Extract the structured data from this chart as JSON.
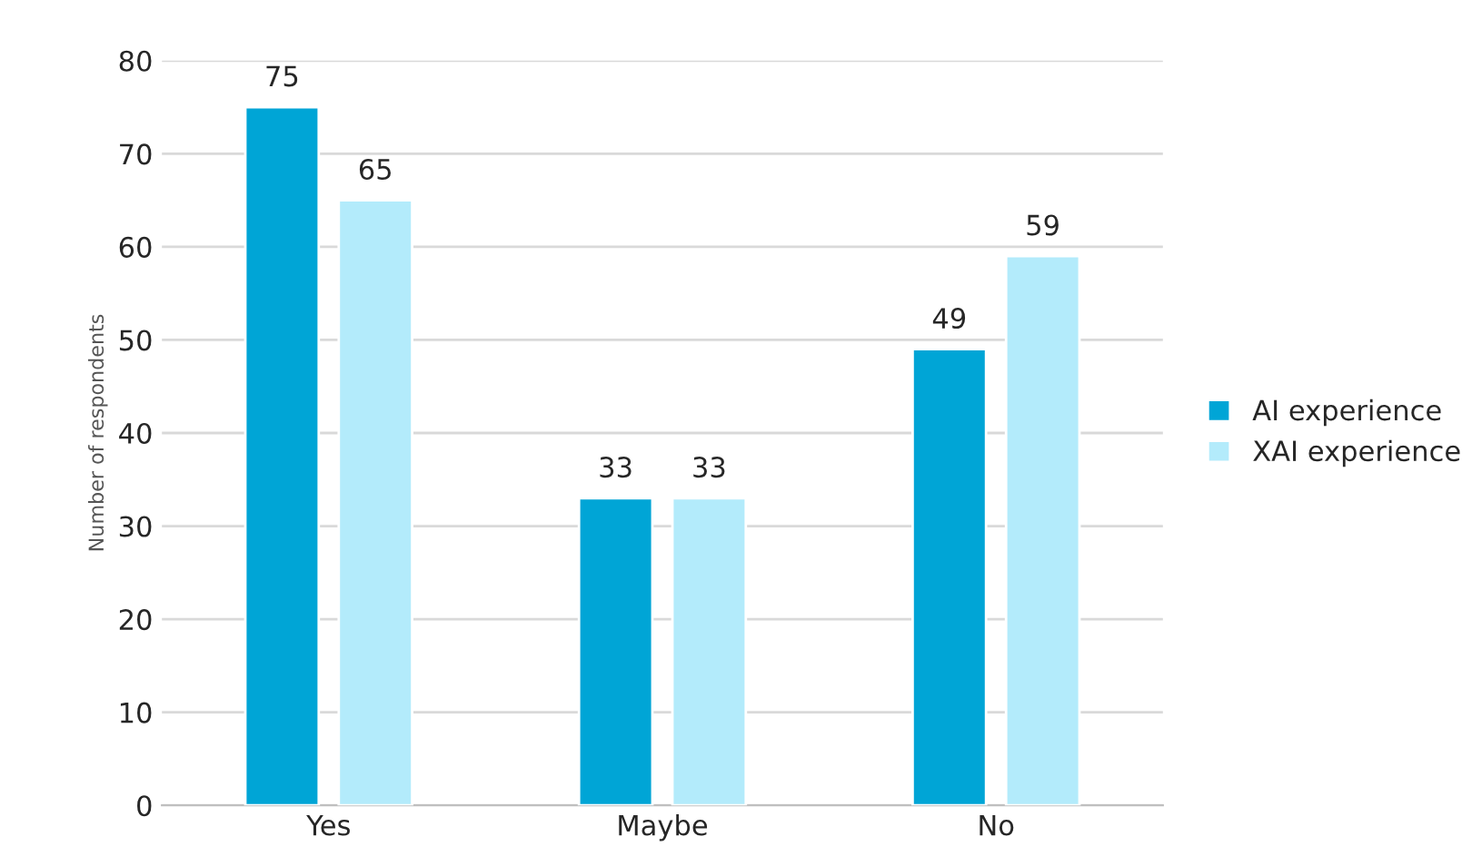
{
  "chart_data": {
    "type": "bar",
    "ylabel": "Number of respondents",
    "categories": [
      "Yes",
      "Maybe",
      "No"
    ],
    "series": [
      {
        "name": "AI experience",
        "color": "#00a5d6",
        "values": [
          75,
          33,
          49
        ]
      },
      {
        "name": "XAI experience",
        "color": "#b3ebfb",
        "values": [
          65,
          33,
          59
        ]
      }
    ],
    "ylim": [
      0,
      80
    ],
    "yticks": [
      0,
      10,
      20,
      30,
      40,
      50,
      60,
      70,
      80
    ],
    "grid": "y",
    "legend": "right",
    "data_labels": true
  }
}
